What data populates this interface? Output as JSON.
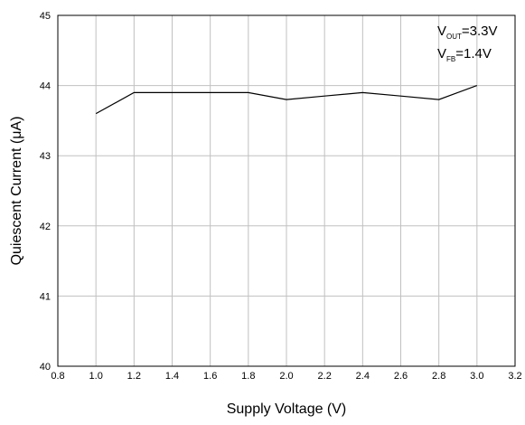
{
  "chart_data": {
    "type": "line",
    "title": "",
    "xlabel": "Supply Voltage (V)",
    "ylabel": "Quiescent Current (μA)",
    "xlim": [
      0.8,
      3.2
    ],
    "ylim": [
      40,
      45
    ],
    "x_ticks": [
      "0.8",
      "1.0",
      "1.2",
      "1.4",
      "1.6",
      "1.8",
      "2.0",
      "2.2",
      "2.4",
      "2.6",
      "2.8",
      "3.0",
      "3.2"
    ],
    "y_ticks": [
      "40",
      "41",
      "42",
      "43",
      "44",
      "45"
    ],
    "grid": true,
    "series": [
      {
        "x": [
          1.0,
          1.2,
          1.4,
          1.6,
          1.8,
          2.0,
          2.2,
          2.4,
          2.6,
          2.8,
          3.0
        ],
        "y": [
          43.6,
          43.9,
          43.9,
          43.9,
          43.9,
          43.8,
          43.85,
          43.9,
          43.85,
          43.8,
          44.0
        ]
      }
    ],
    "annotations": [
      {
        "main": "V",
        "sub": "OUT",
        "value": "=3.3V"
      },
      {
        "main": "V",
        "sub": "FB",
        "value": "=1.4V"
      }
    ],
    "colors": {
      "line": "#000000",
      "grid": "#c0c0c0",
      "frame": "#000000"
    }
  }
}
